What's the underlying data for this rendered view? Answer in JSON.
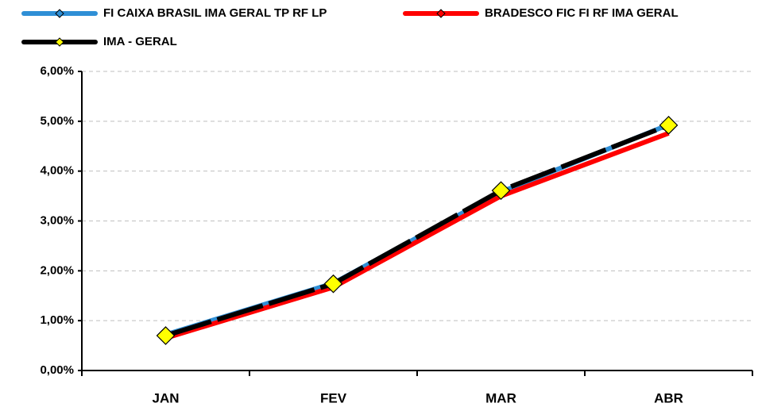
{
  "chart_data": {
    "type": "line",
    "categories": [
      "JAN",
      "FEV",
      "MAR",
      "ABR"
    ],
    "series": [
      {
        "name": "FI CAIXA BRASIL IMA GERAL TP RF LP",
        "color": "#2f8fd6",
        "values": [
          0.72,
          1.75,
          3.58,
          4.93
        ]
      },
      {
        "name": "BRADESCO FIC FI RF IMA GERAL",
        "color": "#ff0000",
        "values": [
          0.65,
          1.67,
          3.5,
          4.76
        ]
      },
      {
        "name": "IMA - GERAL",
        "color": "#000000",
        "marker_color": "#ffff00",
        "values": [
          0.7,
          1.74,
          3.61,
          4.92
        ]
      }
    ],
    "ylim": [
      0,
      6
    ],
    "yticks": [
      {
        "value": 0,
        "label": "0,00%"
      },
      {
        "value": 1,
        "label": "1,00%"
      },
      {
        "value": 2,
        "label": "2,00%"
      },
      {
        "value": 3,
        "label": "3,00%"
      },
      {
        "value": 4,
        "label": "4,00%"
      },
      {
        "value": 5,
        "label": "5,00%"
      },
      {
        "value": 6,
        "label": "6,00%"
      }
    ],
    "grid": true,
    "legend": "top"
  }
}
